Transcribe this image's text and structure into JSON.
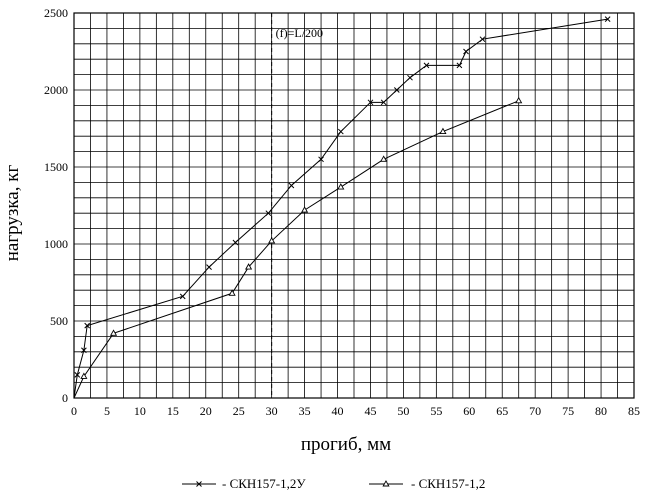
{
  "chart_data": {
    "type": "line",
    "title": "",
    "xlabel": "прогиб, мм",
    "ylabel": "нагрузка, кг",
    "xlim": [
      0,
      85
    ],
    "ylim": [
      0,
      2500
    ],
    "x_ticks": [
      0,
      5,
      10,
      15,
      20,
      25,
      30,
      35,
      40,
      45,
      50,
      55,
      60,
      65,
      70,
      75,
      80,
      85
    ],
    "x_tick_labels": [
      "0",
      "5",
      "10",
      "15",
      "20",
      "25",
      "30",
      "35",
      "40",
      "45",
      "50",
      "55",
      "60",
      "65",
      "70",
      "75",
      "80",
      "85"
    ],
    "y_ticks": [
      0,
      500,
      1000,
      1500,
      2000,
      2500
    ],
    "y_tick_labels": [
      "0",
      "500",
      "1000",
      "1500",
      "2000",
      "2500"
    ],
    "x_grid_step": 2.5,
    "y_grid_step": 100,
    "grid": true,
    "legend_position": "bottom",
    "annotation": {
      "text": "(f)=L/200",
      "x": 30
    },
    "series": [
      {
        "name": "- СКН157-1,2У",
        "marker": "x",
        "color": "#000000",
        "points": [
          [
            0,
            0
          ],
          [
            0.5,
            150
          ],
          [
            1.5,
            310
          ],
          [
            2,
            470
          ],
          [
            16.5,
            660
          ],
          [
            20.5,
            850
          ],
          [
            24.5,
            1010
          ],
          [
            29.5,
            1200
          ],
          [
            33,
            1380
          ],
          [
            37.5,
            1550
          ],
          [
            40.5,
            1730
          ],
          [
            45,
            1920
          ],
          [
            47,
            1920
          ],
          [
            49,
            2000
          ],
          [
            51,
            2080
          ],
          [
            53.5,
            2160
          ],
          [
            58.5,
            2160
          ],
          [
            59.5,
            2250
          ],
          [
            62,
            2330
          ],
          [
            81,
            2460
          ]
        ]
      },
      {
        "name": "- СКН157-1,2",
        "marker": "triangle",
        "color": "#000000",
        "points": [
          [
            0,
            0
          ],
          [
            1.5,
            140
          ],
          [
            6,
            420
          ],
          [
            24,
            680
          ],
          [
            26.5,
            850
          ],
          [
            30,
            1020
          ],
          [
            35,
            1220
          ],
          [
            40.5,
            1370
          ],
          [
            47,
            1550
          ],
          [
            56,
            1730
          ],
          [
            67.5,
            1930
          ]
        ]
      }
    ]
  }
}
